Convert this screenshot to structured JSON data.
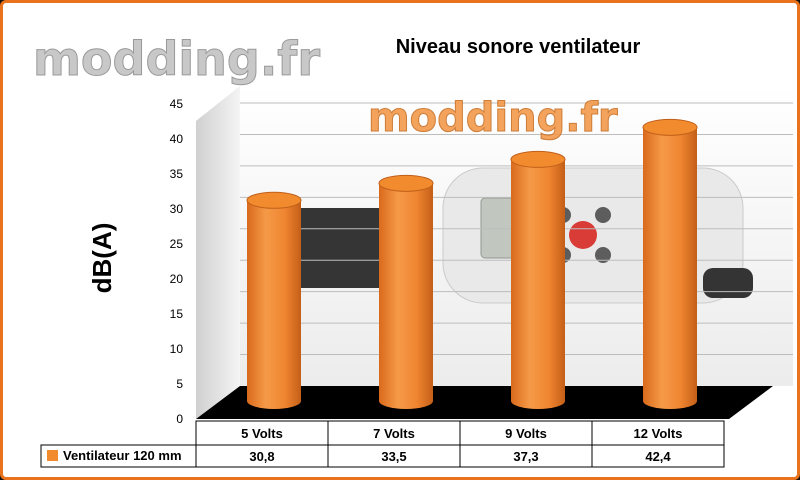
{
  "watermark": "modding.fr",
  "chart_data": {
    "type": "bar",
    "title": "Niveau sonore ventilateur",
    "ylabel": "dB(A)",
    "xlabel": "",
    "categories": [
      "5 Volts",
      "7 Volts",
      "9 Volts",
      "12 Volts"
    ],
    "series": [
      {
        "name": "Ventilateur 120 mm",
        "values": [
          30.8,
          33.5,
          37.3,
          42.4
        ],
        "value_labels": [
          "30,8",
          "33,5",
          "37,3",
          "42,4"
        ]
      }
    ],
    "ylim": [
      0,
      45
    ],
    "yticks": [
      0,
      5,
      10,
      15,
      20,
      25,
      30,
      35,
      40,
      45
    ],
    "grid": true,
    "legend": "data-table-left",
    "colors": {
      "bar": "#f28a2e",
      "bar_dark": "#c0601a",
      "frame": "#e8731c",
      "floor": "#000000"
    }
  }
}
